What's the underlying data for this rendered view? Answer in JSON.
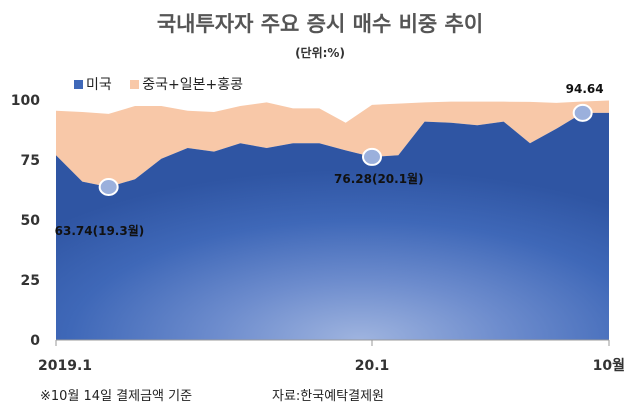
{
  "chart_data": {
    "type": "area",
    "title": "국내투자자 주요 증시 매수 비중 추이",
    "subtitle": "(단위:%)",
    "ylim": [
      0,
      100
    ],
    "yticks": [
      0,
      25,
      50,
      75,
      100
    ],
    "xtick_labels": [
      "2019.1",
      "20.1",
      "10월"
    ],
    "legend_position": "top-left",
    "stacked": true,
    "series": [
      {
        "name": "미국",
        "color": "#3f68b8",
        "values": [
          77,
          66,
          63.74,
          67,
          75.5,
          80,
          78.5,
          82,
          80,
          82,
          82,
          79,
          76.28,
          77,
          91,
          90.5,
          89.5,
          91,
          82,
          88,
          94.64,
          94.64
        ]
      },
      {
        "name": "중국+일본+홍콩",
        "color": "#f8c8a8",
        "values": [
          18.5,
          29,
          30.5,
          30.5,
          22,
          15.5,
          16.5,
          15.5,
          19,
          14.5,
          14.5,
          11.5,
          21.7,
          21.5,
          8,
          8.8,
          9.8,
          8.3,
          17.2,
          10.8,
          4.76,
          5.16
        ]
      }
    ],
    "annotations": [
      {
        "label": "63.74(19.3월)",
        "value": 63.74
      },
      {
        "label": "76.28(20.1월)",
        "value": 76.28
      },
      {
        "label": "94.64",
        "value": 94.64
      }
    ]
  },
  "footnote": "※10월 14일 결제금액 기준",
  "source": "자료:한국예탁결제원"
}
